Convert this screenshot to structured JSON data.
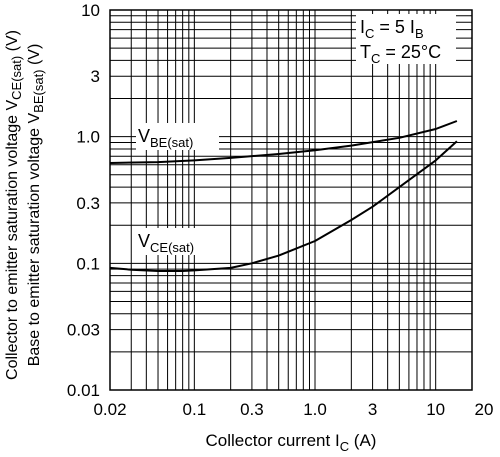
{
  "chart_data": {
    "type": "line",
    "xscale": "log",
    "yscale": "log",
    "xlim": [
      0.02,
      20
    ],
    "ylim": [
      0.01,
      10
    ],
    "grid": true,
    "xlabel": "Collector current",
    "xlabel_symbol": "I",
    "xlabel_sub": "C",
    "xlabel_unit": "(A)",
    "ylabel_lines": [
      {
        "text": "Collector to emitter saturation voltage",
        "sym": "V",
        "sub": "CE(sat)",
        "unit": "(V)"
      },
      {
        "text": "Base to emitter saturation voltage",
        "sym": "V",
        "sub": "BE(sat)",
        "unit": "(V)"
      }
    ],
    "x_ticks": [
      {
        "value": 0.02,
        "label": "0.02"
      },
      {
        "value": 0.1,
        "label": "0.1"
      },
      {
        "value": 0.3,
        "label": "0.3"
      },
      {
        "value": 1,
        "label": "1.0"
      },
      {
        "value": 3,
        "label": "3"
      },
      {
        "value": 10,
        "label": "10"
      },
      {
        "value": 20,
        "label": "20"
      }
    ],
    "y_ticks": [
      {
        "value": 10,
        "label": "10"
      },
      {
        "value": 3,
        "label": "3"
      },
      {
        "value": 1,
        "label": "1.0"
      },
      {
        "value": 0.3,
        "label": "0.3"
      },
      {
        "value": 0.1,
        "label": "0.1"
      },
      {
        "value": 0.03,
        "label": "0.03"
      },
      {
        "value": 0.01,
        "label": "0.01"
      }
    ],
    "conditions": [
      {
        "sym": "I",
        "sub": "C",
        "rest": " = 5 I",
        "sub2": "B"
      },
      {
        "sym": "T",
        "sub": "C",
        "rest": " = 25°C",
        "sub2": ""
      }
    ],
    "series": [
      {
        "name": "V",
        "name_sub": "BE(sat)",
        "x": [
          0.02,
          0.05,
          0.1,
          0.2,
          0.5,
          1,
          2,
          5,
          10,
          15
        ],
        "y": [
          0.62,
          0.63,
          0.65,
          0.68,
          0.73,
          0.78,
          0.85,
          0.98,
          1.15,
          1.33
        ]
      },
      {
        "name": "V",
        "name_sub": "CE(sat)",
        "x": [
          0.02,
          0.03,
          0.05,
          0.08,
          0.1,
          0.2,
          0.3,
          0.5,
          1,
          2,
          3,
          5,
          10,
          15
        ],
        "y": [
          0.092,
          0.089,
          0.087,
          0.087,
          0.088,
          0.092,
          0.1,
          0.115,
          0.15,
          0.22,
          0.28,
          0.4,
          0.65,
          0.92
        ]
      }
    ]
  }
}
